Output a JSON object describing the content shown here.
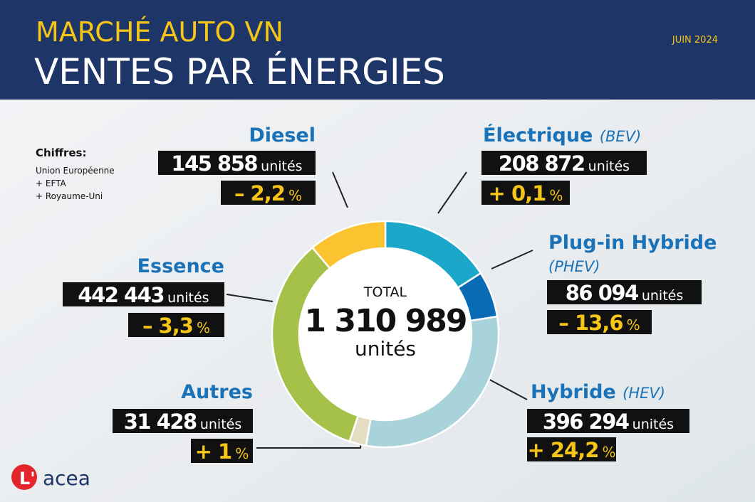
{
  "chart_data": {
    "type": "donut",
    "supertitle": "MARCHÉ AUTO VN",
    "title": "VENTES PAR ÉNERGIES",
    "date": "JUIN 2024",
    "notes": {
      "heading": "Chiffres:",
      "lines": [
        "Union Européenne",
        "+ EFTA",
        "+ Royaume-Uni"
      ]
    },
    "center": {
      "label": "TOTAL",
      "value": 1310989,
      "value_label": "1 310 989",
      "unit": "unités"
    },
    "categories": [
      "Électrique",
      "Plug-in Hybride",
      "Hybride",
      "Autres",
      "Essence",
      "Diesel"
    ],
    "subtitles": [
      "(BEV)",
      "(PHEV)",
      "(HEV)",
      null,
      null,
      null
    ],
    "values": [
      208872,
      86094,
      396294,
      31428,
      442443,
      145858
    ],
    "value_labels": [
      "208 872",
      "86 094",
      "396 294",
      "31 428",
      "442 443",
      "145 858"
    ],
    "unit": "unités",
    "change_labels": [
      "+ 0,1",
      "– 13,6",
      "+ 24,2",
      "+ 1",
      "– 3,3",
      "– 2,2"
    ],
    "change_unit": "%",
    "colors": [
      "#1aa7c9",
      "#0a6bb5",
      "#a8d3da",
      "#e4ddc2",
      "#a5c14a",
      "#fcc330"
    ],
    "logo": "acea"
  }
}
